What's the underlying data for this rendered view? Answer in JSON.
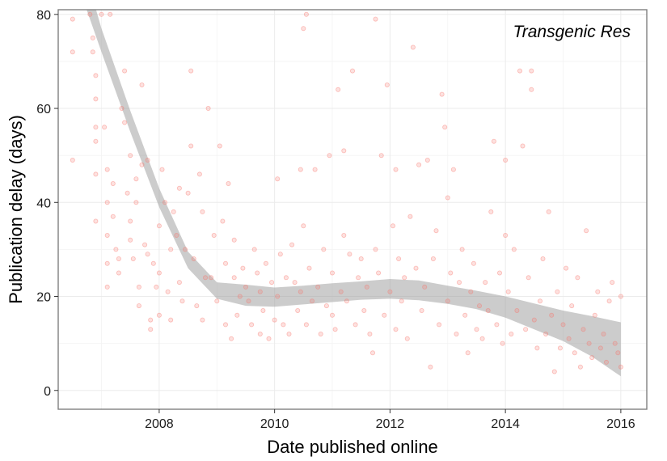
{
  "chart_data": {
    "type": "scatter",
    "title": "",
    "annotation": "Transgenic Res",
    "xlabel": "Date published online",
    "ylabel": "Publication delay (days)",
    "xlim": [
      2006.25,
      2016.45
    ],
    "ylim": [
      -4,
      81
    ],
    "x_ticks": [
      2008,
      2010,
      2012,
      2014,
      2016
    ],
    "x_tick_labels": [
      "2008",
      "2010",
      "2012",
      "2014",
      "2016"
    ],
    "y_ticks": [
      0,
      20,
      40,
      60,
      80
    ],
    "y_tick_labels": [
      "0",
      "20",
      "40",
      "60",
      "80"
    ],
    "grid": true,
    "point_color": "#f8766d",
    "smooth_band_color": "#999999",
    "smooth": {
      "x": [
        2006.6,
        2007.0,
        2007.5,
        2008.0,
        2008.5,
        2009.0,
        2009.5,
        2010.0,
        2010.5,
        2011.0,
        2011.5,
        2012.0,
        2012.5,
        2013.0,
        2013.5,
        2014.0,
        2014.5,
        2015.0,
        2015.5,
        2016.0
      ],
      "lower": [
        86.0,
        72.0,
        55.0,
        39.0,
        26.0,
        19.5,
        18.0,
        17.8,
        18.3,
        18.8,
        19.3,
        19.5,
        19.2,
        18.4,
        17.3,
        15.5,
        13.0,
        10.5,
        7.2,
        3.0
      ],
      "upper": [
        94.0,
        77.0,
        59.5,
        43.0,
        29.5,
        23.0,
        22.5,
        21.9,
        22.3,
        22.8,
        23.2,
        23.7,
        23.4,
        22.3,
        21.2,
        20.0,
        18.5,
        17.0,
        15.8,
        14.5
      ]
    },
    "points": [
      [
        2006.5,
        79
      ],
      [
        2006.5,
        72
      ],
      [
        2006.5,
        49
      ],
      [
        2006.8,
        80
      ],
      [
        2006.85,
        75
      ],
      [
        2006.85,
        72
      ],
      [
        2006.9,
        67
      ],
      [
        2006.9,
        62
      ],
      [
        2006.9,
        56
      ],
      [
        2006.9,
        53
      ],
      [
        2006.9,
        46
      ],
      [
        2006.9,
        36
      ],
      [
        2007.0,
        80
      ],
      [
        2007.05,
        56
      ],
      [
        2007.1,
        47
      ],
      [
        2007.1,
        40
      ],
      [
        2007.1,
        33
      ],
      [
        2007.1,
        27
      ],
      [
        2007.1,
        22
      ],
      [
        2007.15,
        80
      ],
      [
        2007.2,
        44
      ],
      [
        2007.2,
        37
      ],
      [
        2007.25,
        30
      ],
      [
        2007.3,
        28
      ],
      [
        2007.3,
        25
      ],
      [
        2007.35,
        60
      ],
      [
        2007.4,
        57
      ],
      [
        2007.4,
        68
      ],
      [
        2007.45,
        42
      ],
      [
        2007.5,
        36
      ],
      [
        2007.5,
        32
      ],
      [
        2007.5,
        50
      ],
      [
        2007.55,
        28
      ],
      [
        2007.6,
        45
      ],
      [
        2007.6,
        40
      ],
      [
        2007.65,
        22
      ],
      [
        2007.65,
        18
      ],
      [
        2007.7,
        65
      ],
      [
        2007.7,
        48
      ],
      [
        2007.75,
        31
      ],
      [
        2007.8,
        29
      ],
      [
        2007.8,
        49
      ],
      [
        2007.85,
        15
      ],
      [
        2007.85,
        13
      ],
      [
        2007.9,
        27
      ],
      [
        2007.95,
        22
      ],
      [
        2008.0,
        35
      ],
      [
        2008.0,
        25
      ],
      [
        2008.0,
        16
      ],
      [
        2008.05,
        47
      ],
      [
        2008.1,
        40
      ],
      [
        2008.15,
        21
      ],
      [
        2008.2,
        30
      ],
      [
        2008.2,
        15
      ],
      [
        2008.25,
        38
      ],
      [
        2008.3,
        33
      ],
      [
        2008.35,
        23
      ],
      [
        2008.35,
        43
      ],
      [
        2008.4,
        19
      ],
      [
        2008.45,
        30
      ],
      [
        2008.5,
        42
      ],
      [
        2008.55,
        52
      ],
      [
        2008.55,
        68
      ],
      [
        2008.6,
        28
      ],
      [
        2008.65,
        18
      ],
      [
        2008.7,
        46
      ],
      [
        2008.75,
        15
      ],
      [
        2008.75,
        38
      ],
      [
        2008.8,
        24
      ],
      [
        2008.85,
        60
      ],
      [
        2008.9,
        24
      ],
      [
        2008.95,
        33
      ],
      [
        2009.0,
        19
      ],
      [
        2009.05,
        52
      ],
      [
        2009.1,
        36
      ],
      [
        2009.15,
        27
      ],
      [
        2009.15,
        14
      ],
      [
        2009.2,
        44
      ],
      [
        2009.25,
        11
      ],
      [
        2009.3,
        24
      ],
      [
        2009.3,
        32
      ],
      [
        2009.35,
        16
      ],
      [
        2009.4,
        20
      ],
      [
        2009.45,
        26
      ],
      [
        2009.5,
        22
      ],
      [
        2009.55,
        19
      ],
      [
        2009.6,
        14
      ],
      [
        2009.65,
        30
      ],
      [
        2009.7,
        25
      ],
      [
        2009.75,
        12
      ],
      [
        2009.75,
        21
      ],
      [
        2009.8,
        17
      ],
      [
        2009.85,
        27
      ],
      [
        2009.9,
        11
      ],
      [
        2009.95,
        23
      ],
      [
        2010.0,
        15
      ],
      [
        2010.05,
        20
      ],
      [
        2010.05,
        45
      ],
      [
        2010.1,
        29
      ],
      [
        2010.15,
        14
      ],
      [
        2010.2,
        24
      ],
      [
        2010.25,
        12
      ],
      [
        2010.3,
        31
      ],
      [
        2010.35,
        23
      ],
      [
        2010.4,
        17
      ],
      [
        2010.45,
        21
      ],
      [
        2010.45,
        47
      ],
      [
        2010.5,
        77
      ],
      [
        2010.5,
        35
      ],
      [
        2010.55,
        80
      ],
      [
        2010.55,
        14
      ],
      [
        2010.6,
        26
      ],
      [
        2010.65,
        19
      ],
      [
        2010.7,
        47
      ],
      [
        2010.75,
        22
      ],
      [
        2010.8,
        12
      ],
      [
        2010.85,
        30
      ],
      [
        2010.9,
        18
      ],
      [
        2010.95,
        50
      ],
      [
        2011.0,
        25
      ],
      [
        2011.0,
        16
      ],
      [
        2011.05,
        13
      ],
      [
        2011.1,
        64
      ],
      [
        2011.15,
        21
      ],
      [
        2011.2,
        33
      ],
      [
        2011.2,
        51
      ],
      [
        2011.25,
        19
      ],
      [
        2011.3,
        29
      ],
      [
        2011.35,
        68
      ],
      [
        2011.4,
        14
      ],
      [
        2011.45,
        24
      ],
      [
        2011.5,
        28
      ],
      [
        2011.55,
        17
      ],
      [
        2011.6,
        22
      ],
      [
        2011.65,
        12
      ],
      [
        2011.7,
        8
      ],
      [
        2011.75,
        30
      ],
      [
        2011.75,
        79
      ],
      [
        2011.8,
        25
      ],
      [
        2011.85,
        50
      ],
      [
        2011.9,
        16
      ],
      [
        2011.95,
        65
      ],
      [
        2012.0,
        21
      ],
      [
        2012.05,
        35
      ],
      [
        2012.1,
        47
      ],
      [
        2012.1,
        13
      ],
      [
        2012.15,
        28
      ],
      [
        2012.2,
        19
      ],
      [
        2012.25,
        24
      ],
      [
        2012.3,
        11
      ],
      [
        2012.35,
        37
      ],
      [
        2012.4,
        73
      ],
      [
        2012.45,
        26
      ],
      [
        2012.5,
        48
      ],
      [
        2012.55,
        17
      ],
      [
        2012.6,
        22
      ],
      [
        2012.65,
        49
      ],
      [
        2012.7,
        5
      ],
      [
        2012.75,
        28
      ],
      [
        2012.8,
        34
      ],
      [
        2012.85,
        14
      ],
      [
        2012.9,
        63
      ],
      [
        2012.95,
        56
      ],
      [
        2013.0,
        19
      ],
      [
        2013.0,
        41
      ],
      [
        2013.05,
        25
      ],
      [
        2013.1,
        47
      ],
      [
        2013.15,
        12
      ],
      [
        2013.2,
        23
      ],
      [
        2013.25,
        30
      ],
      [
        2013.3,
        16
      ],
      [
        2013.35,
        8
      ],
      [
        2013.4,
        21
      ],
      [
        2013.45,
        27
      ],
      [
        2013.5,
        13
      ],
      [
        2013.55,
        18
      ],
      [
        2013.6,
        11
      ],
      [
        2013.65,
        23
      ],
      [
        2013.7,
        17
      ],
      [
        2013.75,
        38
      ],
      [
        2013.8,
        53
      ],
      [
        2013.85,
        14
      ],
      [
        2013.9,
        25
      ],
      [
        2013.95,
        10
      ],
      [
        2014.0,
        33
      ],
      [
        2014.0,
        49
      ],
      [
        2014.05,
        21
      ],
      [
        2014.1,
        12
      ],
      [
        2014.15,
        30
      ],
      [
        2014.2,
        17
      ],
      [
        2014.25,
        68
      ],
      [
        2014.3,
        52
      ],
      [
        2014.35,
        13
      ],
      [
        2014.4,
        24
      ],
      [
        2014.45,
        64
      ],
      [
        2014.45,
        68
      ],
      [
        2014.5,
        15
      ],
      [
        2014.55,
        9
      ],
      [
        2014.6,
        19
      ],
      [
        2014.65,
        28
      ],
      [
        2014.7,
        12
      ],
      [
        2014.75,
        38
      ],
      [
        2014.8,
        16
      ],
      [
        2014.85,
        4
      ],
      [
        2014.9,
        21
      ],
      [
        2014.95,
        9
      ],
      [
        2015.0,
        14
      ],
      [
        2015.05,
        26
      ],
      [
        2015.1,
        11
      ],
      [
        2015.15,
        18
      ],
      [
        2015.2,
        8
      ],
      [
        2015.25,
        24
      ],
      [
        2015.3,
        5
      ],
      [
        2015.35,
        13
      ],
      [
        2015.4,
        34
      ],
      [
        2015.45,
        10
      ],
      [
        2015.5,
        7
      ],
      [
        2015.55,
        16
      ],
      [
        2015.6,
        21
      ],
      [
        2015.65,
        9
      ],
      [
        2015.7,
        12
      ],
      [
        2015.75,
        6
      ],
      [
        2015.8,
        19
      ],
      [
        2015.85,
        23
      ],
      [
        2015.9,
        10
      ],
      [
        2015.95,
        8
      ],
      [
        2016.0,
        20
      ],
      [
        2016.0,
        5
      ]
    ]
  }
}
